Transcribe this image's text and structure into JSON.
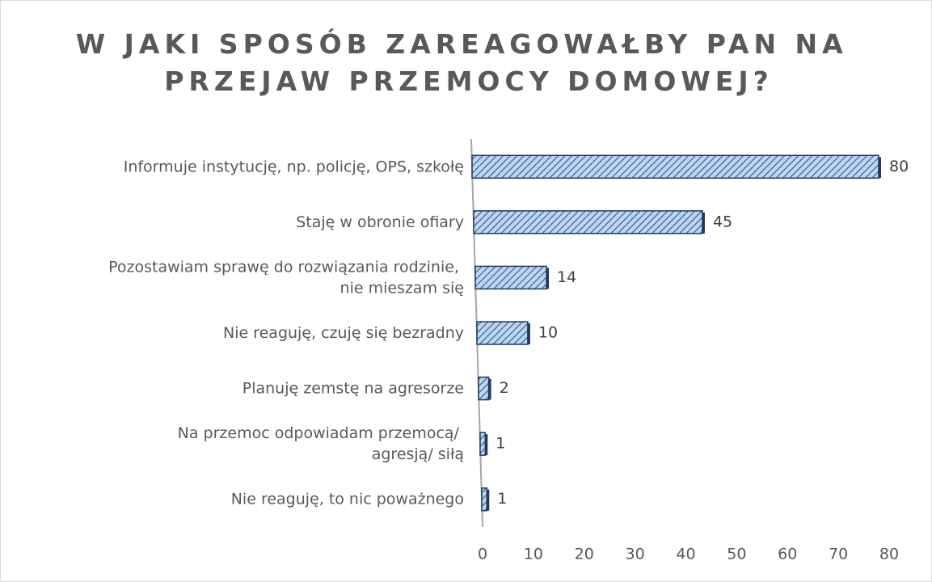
{
  "chart_data": {
    "type": "bar",
    "orientation": "horizontal",
    "title": "W JAKI SPOSÓB ZAREAGOWAŁBY PAN NA\nPRZEJAW PRZEMOCY DOMOWEJ?",
    "categories": [
      "Informuje instytucję, np. policję, OPS, szkołę",
      "Staję w obronie ofiary",
      "Pozostawiam sprawę do rozwiązania rodzinie,\nnie mieszam się",
      "Nie reaguję, czuję się bezradny",
      "Planuję zemstę na agresorze",
      "Na przemoc odpowiadam przemocą/\nagresją/ siłą",
      "Nie reaguję, to nic poważnego"
    ],
    "values": [
      80,
      45,
      14,
      10,
      2,
      1,
      1
    ],
    "color": "#9dc3e6",
    "edge_color": "#1f3864",
    "xlim": [
      0,
      80
    ],
    "xticks": [
      0,
      10,
      20,
      30,
      40,
      50,
      60,
      70,
      80
    ],
    "grid": false
  }
}
